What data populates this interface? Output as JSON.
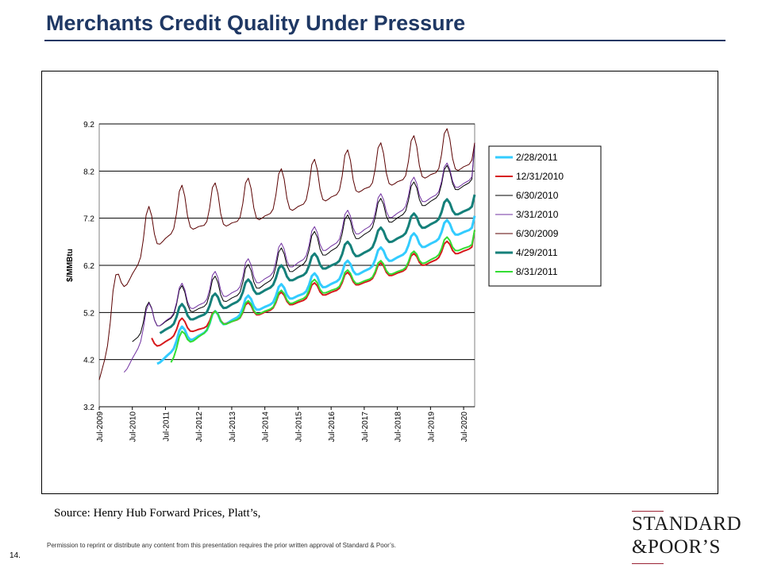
{
  "page": {
    "title": "Merchants Credit Quality Under Pressure",
    "source": "Source:  Henry Hub Forward Prices, Platt’s,",
    "page_number": "14.",
    "permission": "Permission to reprint or distribute any content from this presentation requires the prior written approval of Standard & Poor’s.",
    "logo_line1": "STANDARD",
    "logo_line2": "&POOR’S",
    "logo_color": "#1a1a1a",
    "logo_accent_color": "#9b2335",
    "title_color": "#1f3864"
  },
  "chart_data": {
    "type": "line",
    "title": "",
    "xlabel": "",
    "ylabel": "$/MMBtu",
    "ylim": [
      3.2,
      9.2
    ],
    "yticks": [
      3.2,
      4.2,
      5.2,
      6.2,
      7.2,
      8.2,
      9.2
    ],
    "xlim": [
      "Jul-2009",
      "Nov-2020"
    ],
    "xticks": [
      "Jul-2009",
      "Jul-2010",
      "Jul-2011",
      "Jul-2012",
      "Jul-2013",
      "Jul-2014",
      "Jul-2015",
      "Jul-2016",
      "Jul-2017",
      "Jul-2018",
      "Jul-2019",
      "Jul-2020"
    ],
    "grid": "horizontal",
    "legend_position": "right",
    "series": [
      {
        "name": "2/28/2011",
        "color": "#33ccff",
        "width": 3,
        "start": "Apr-2011",
        "end": "Nov-2020",
        "base": [
          [
            2011,
            3.95
          ],
          [
            2012,
            4.52
          ],
          [
            2013,
            4.85
          ],
          [
            2014,
            5.18
          ],
          [
            2015,
            5.42
          ],
          [
            2016,
            5.65
          ],
          [
            2017,
            5.92
          ],
          [
            2018,
            6.2
          ],
          [
            2019,
            6.5
          ],
          [
            2020,
            6.78
          ],
          [
            2020.8,
            6.95
          ]
        ],
        "seasonal": 0.38,
        "end_value": 7.25
      },
      {
        "name": "12/31/2010",
        "color": "#d7191c",
        "width": 2,
        "start": "Feb-2011",
        "end": "Nov-2020",
        "base": [
          [
            2011,
            4.38
          ],
          [
            2012,
            4.75
          ],
          [
            2013,
            4.9
          ],
          [
            2014,
            5.08
          ],
          [
            2015,
            5.3
          ],
          [
            2016,
            5.5
          ],
          [
            2017,
            5.72
          ],
          [
            2018,
            5.92
          ],
          [
            2019,
            6.12
          ],
          [
            2020,
            6.38
          ],
          [
            2020.8,
            6.55
          ]
        ],
        "seasonal": 0.33,
        "end_value": 6.95
      },
      {
        "name": "6/30/2010",
        "color": "#000000",
        "width": 1,
        "start": "Jul-2010",
        "end": "Nov-2020",
        "base": [
          [
            2010.5,
            4.55
          ],
          [
            2011,
            4.8
          ],
          [
            2012,
            5.15
          ],
          [
            2013,
            5.35
          ],
          [
            2014,
            5.6
          ],
          [
            2015,
            5.95
          ],
          [
            2016,
            6.3
          ],
          [
            2017,
            6.65
          ],
          [
            2018,
            7.0
          ],
          [
            2019,
            7.35
          ],
          [
            2020,
            7.7
          ],
          [
            2020.8,
            7.95
          ]
        ],
        "seasonal": 0.62,
        "end_value": 8.75
      },
      {
        "name": "3/31/2010",
        "color": "#7030a0",
        "width": 1,
        "start": "Apr-2010",
        "end": "Nov-2020",
        "base": [
          [
            2010.25,
            3.9
          ],
          [
            2011,
            4.78
          ],
          [
            2012,
            5.2
          ],
          [
            2013,
            5.45
          ],
          [
            2014,
            5.72
          ],
          [
            2015,
            6.05
          ],
          [
            2016,
            6.4
          ],
          [
            2017,
            6.75
          ],
          [
            2018,
            7.1
          ],
          [
            2019,
            7.45
          ],
          [
            2020,
            7.75
          ],
          [
            2020.8,
            8.0
          ]
        ],
        "seasonal": 0.62,
        "end_value": 8.8
      },
      {
        "name": "6/30/2009",
        "color": "#5a0000",
        "width": 1,
        "start": "Jul-2009",
        "end": "Nov-2020",
        "base": [
          [
            2009.5,
            3.72
          ],
          [
            2009.85,
            4.6
          ],
          [
            2010.2,
            5.65
          ],
          [
            2011,
            6.5
          ],
          [
            2012,
            6.95
          ],
          [
            2013,
            7.0
          ],
          [
            2014,
            7.1
          ],
          [
            2015,
            7.3
          ],
          [
            2016,
            7.5
          ],
          [
            2017,
            7.7
          ],
          [
            2018,
            7.85
          ],
          [
            2019,
            8.0
          ],
          [
            2020,
            8.15
          ],
          [
            2020.8,
            8.3
          ]
        ],
        "seasonal": 0.95,
        "end_value": 8.8
      },
      {
        "name": "4/29/2011",
        "color": "#15807a",
        "width": 3,
        "start": "May-2011",
        "end": "Nov-2020",
        "base": [
          [
            2011.3,
            4.75
          ],
          [
            2012,
            4.98
          ],
          [
            2013,
            5.2
          ],
          [
            2014,
            5.5
          ],
          [
            2015,
            5.8
          ],
          [
            2016,
            6.05
          ],
          [
            2017,
            6.3
          ],
          [
            2018,
            6.6
          ],
          [
            2019,
            6.9
          ],
          [
            2020,
            7.2
          ],
          [
            2020.8,
            7.4
          ]
        ],
        "seasonal": 0.4,
        "end_value": 7.7
      },
      {
        "name": "8/31/2011",
        "color": "#33dd33",
        "width": 2,
        "start": "Sep-2011",
        "end": "Nov-2020",
        "base": [
          [
            2011.65,
            4.1
          ],
          [
            2012,
            4.45
          ],
          [
            2013,
            4.88
          ],
          [
            2014,
            5.1
          ],
          [
            2015,
            5.32
          ],
          [
            2016,
            5.55
          ],
          [
            2017,
            5.75
          ],
          [
            2018,
            5.95
          ],
          [
            2019,
            6.15
          ],
          [
            2020,
            6.45
          ],
          [
            2020.8,
            6.6
          ]
        ],
        "seasonal": 0.35,
        "end_value": 6.95
      }
    ]
  }
}
